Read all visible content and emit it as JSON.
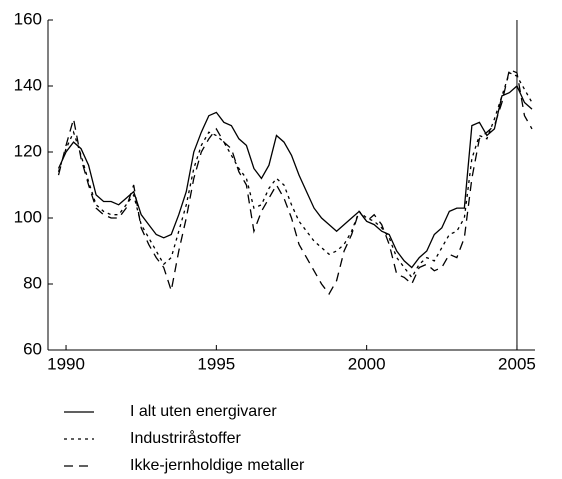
{
  "chart_data": {
    "type": "line",
    "x": [
      1989.75,
      1990,
      1990.25,
      1990.5,
      1990.75,
      1991,
      1991.25,
      1991.5,
      1991.75,
      1992,
      1992.25,
      1992.5,
      1992.75,
      1993,
      1993.25,
      1993.5,
      1993.75,
      1994,
      1994.25,
      1994.5,
      1994.75,
      1995,
      1995.25,
      1995.5,
      1995.75,
      1996,
      1996.25,
      1996.5,
      1996.75,
      1997,
      1997.25,
      1997.5,
      1997.75,
      1998,
      1998.25,
      1998.5,
      1998.75,
      1999,
      1999.25,
      1999.5,
      1999.75,
      2000,
      2000.25,
      2000.5,
      2000.75,
      2001,
      2001.25,
      2001.5,
      2001.75,
      2002,
      2002.25,
      2002.5,
      2002.75,
      2003,
      2003.25,
      2003.5,
      2003.75,
      2004,
      2004.25,
      2004.5,
      2004.75,
      2005,
      2005.25,
      2005.5
    ],
    "series": [
      {
        "name": "I alt uten energivarer",
        "color": "#000000",
        "dash": "solid",
        "values": [
          115,
          120,
          123,
          121,
          116,
          107,
          105,
          105,
          104,
          106,
          108,
          101,
          98,
          95,
          94,
          95,
          101,
          108,
          120,
          126,
          131,
          132,
          129,
          128,
          124,
          122,
          115,
          112,
          116,
          125,
          123,
          119,
          113,
          108,
          103,
          100,
          98,
          96,
          98,
          100,
          102,
          99,
          98,
          96,
          95,
          90,
          87,
          85,
          88,
          90,
          95,
          97,
          102,
          103,
          103,
          128,
          129,
          125,
          127,
          137,
          138,
          140,
          135,
          133
        ]
      },
      {
        "name": "Industriråstoffer",
        "color": "#000000",
        "dash": "dotted",
        "values": [
          114,
          121,
          126,
          119,
          111,
          104,
          102,
          101,
          101,
          104,
          107,
          98,
          94,
          90,
          86,
          88,
          96,
          104,
          115,
          122,
          126,
          125,
          123,
          119,
          115,
          112,
          103,
          104,
          109,
          112,
          110,
          104,
          99,
          96,
          93,
          91,
          89,
          90,
          92,
          96,
          102,
          100,
          99,
          97,
          94,
          88,
          85,
          82,
          86,
          88,
          87,
          91,
          95,
          96,
          100,
          118,
          125,
          124,
          130,
          137,
          144,
          143,
          139,
          135
        ]
      },
      {
        "name": "Ikke-jernholdige metaller",
        "color": "#000000",
        "dash": "dashed",
        "values": [
          113,
          122,
          130,
          118,
          110,
          103,
          101,
          100,
          100,
          103,
          110,
          97,
          92,
          88,
          85,
          78,
          90,
          100,
          112,
          120,
          124,
          127,
          123,
          121,
          114,
          110,
          96,
          102,
          106,
          110,
          106,
          100,
          92,
          88,
          84,
          80,
          77,
          81,
          90,
          95,
          102,
          99,
          101,
          98,
          92,
          83,
          82,
          80,
          85,
          86,
          84,
          85,
          89,
          88,
          94,
          112,
          124,
          126,
          128,
          135,
          145,
          144,
          131,
          127
        ]
      }
    ],
    "xlim": [
      1989.4,
      2005.6
    ],
    "xticks": [
      1990,
      1995,
      2000,
      2005
    ],
    "ylim": [
      60,
      160
    ],
    "yticks": [
      60,
      80,
      100,
      120,
      140,
      160
    ],
    "vline": 2005
  }
}
